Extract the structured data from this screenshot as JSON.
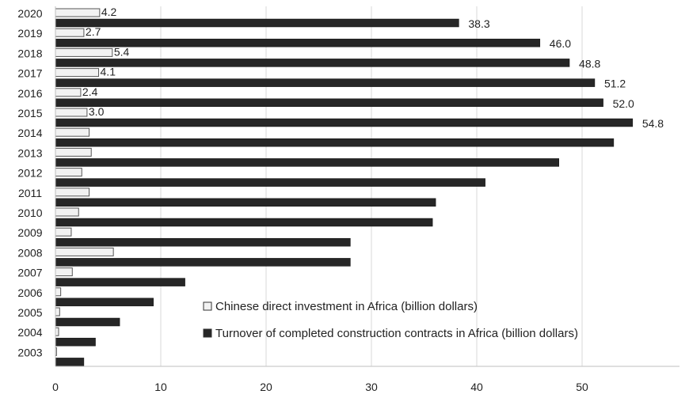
{
  "chart_data": {
    "type": "bar",
    "orientation": "horizontal",
    "categories": [
      "2020",
      "2019",
      "2018",
      "2017",
      "2016",
      "2015",
      "2014",
      "2013",
      "2012",
      "2011",
      "2010",
      "2009",
      "2008",
      "2007",
      "2006",
      "2005",
      "2004",
      "2003"
    ],
    "series": [
      {
        "name": "Chinese direct investment in Africa (billion dollars)",
        "color": "#f2f2f2",
        "values": [
          4.2,
          2.7,
          5.4,
          4.1,
          2.4,
          3.0,
          3.2,
          3.4,
          2.5,
          3.2,
          2.2,
          1.5,
          5.5,
          1.6,
          0.5,
          0.4,
          0.3,
          0.1
        ],
        "labels": [
          "4.2",
          "2.7",
          "5.4",
          "4.1",
          "2.4",
          "3.0",
          "",
          "",
          "",
          "",
          "",
          "",
          "",
          "",
          "",
          "",
          "",
          ""
        ]
      },
      {
        "name": "Turnover of completed construction contracts in Africa (billion dollars)",
        "color": "#262626",
        "values": [
          38.3,
          46.0,
          48.8,
          51.2,
          52.0,
          54.8,
          53.0,
          47.8,
          40.8,
          36.1,
          35.8,
          28.0,
          28.0,
          12.3,
          9.3,
          6.1,
          3.8,
          2.7
        ],
        "labels": [
          "38.3",
          "46.0",
          "48.8",
          "51.2",
          "52.0",
          "54.8",
          "",
          "",
          "",
          "",
          "",
          "",
          "",
          "",
          "",
          "",
          "",
          ""
        ]
      }
    ],
    "xticks": [
      "0",
      "10",
      "20",
      "30",
      "40",
      "50"
    ],
    "xlim": [
      0,
      60
    ],
    "grid": true,
    "legend_position": "bottom-right"
  }
}
